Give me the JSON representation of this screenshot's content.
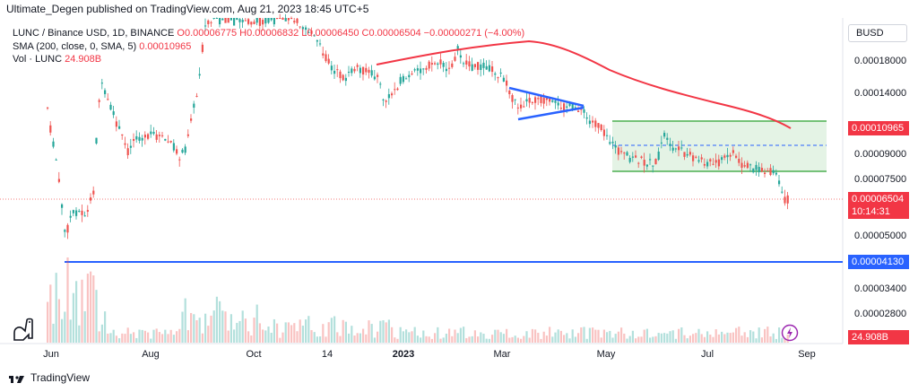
{
  "header": {
    "title": "Ultimate_Degen published on TradingView.com, Aug 21, 2023 18:45 UTC+5"
  },
  "legend": {
    "symbol": "LUNC / Binance USD, 1D, BINANCE",
    "ohlc": "O0.00006775 H0.00006832 L0.00006450 C0.00006504 −0.00000271 (−4.00%)",
    "sma_label": "SMA (200, close, 0, SMA, 5)",
    "sma_value": "0.00010965",
    "vol_label": "Vol · LUNC",
    "vol_value": "24.908B"
  },
  "currency_button": "BUSD",
  "footer": {
    "brand": "TradingView"
  },
  "colors": {
    "up": "#26a69a",
    "down": "#ef5350",
    "sma": "#f23645",
    "blue": "#2962ff",
    "green": "#4caf50"
  },
  "chart_data": {
    "type": "candlestick",
    "symbol": "LUNC/BUSD",
    "yscale": "log",
    "ylim": [
      4.35e-05,
      2.5e-05
    ],
    "y_ticks": [
      "0.00018000",
      "0.00014000",
      "0.00009000",
      "0.00007500",
      "0.00005000",
      "0.00003400",
      "0.00002800"
    ],
    "x_ticks": [
      "Jun",
      "Aug",
      "Oct",
      "14",
      "2023",
      "Mar",
      "May",
      "Jul",
      "Sep"
    ],
    "price_tags": {
      "sma": "0.00010965",
      "last": "0.00006504",
      "countdown": "10:14:31",
      "support": "0.00004130",
      "volume": "24.908B"
    },
    "approx_close_path": [
      {
        "t": "Jun",
        "v": 8e-05
      },
      {
        "t": "mid-Jun",
        "v": 5.4e-05
      },
      {
        "t": "Jul",
        "v": 0.0001
      },
      {
        "t": "Aug",
        "v": 9.5e-05
      },
      {
        "t": "Sep",
        "v": 0.00022
      },
      {
        "t": "Oct",
        "v": 0.0003
      },
      {
        "t": "Nov",
        "v": 0.0002
      },
      {
        "t": "Dec",
        "v": 0.00017
      },
      {
        "t": "2023",
        "v": 0.00016
      },
      {
        "t": "Feb",
        "v": 0.00018
      },
      {
        "t": "Mar",
        "v": 0.00013
      },
      {
        "t": "Apr",
        "v": 0.00011
      },
      {
        "t": "May",
        "v": 8.5e-05
      },
      {
        "t": "Jun",
        "v": 9.5e-05
      },
      {
        "t": "Jul",
        "v": 8e-05
      },
      {
        "t": "Aug",
        "v": 7.8e-05
      },
      {
        "t": "Aug 21",
        "v": 6.504e-05
      }
    ]
  }
}
